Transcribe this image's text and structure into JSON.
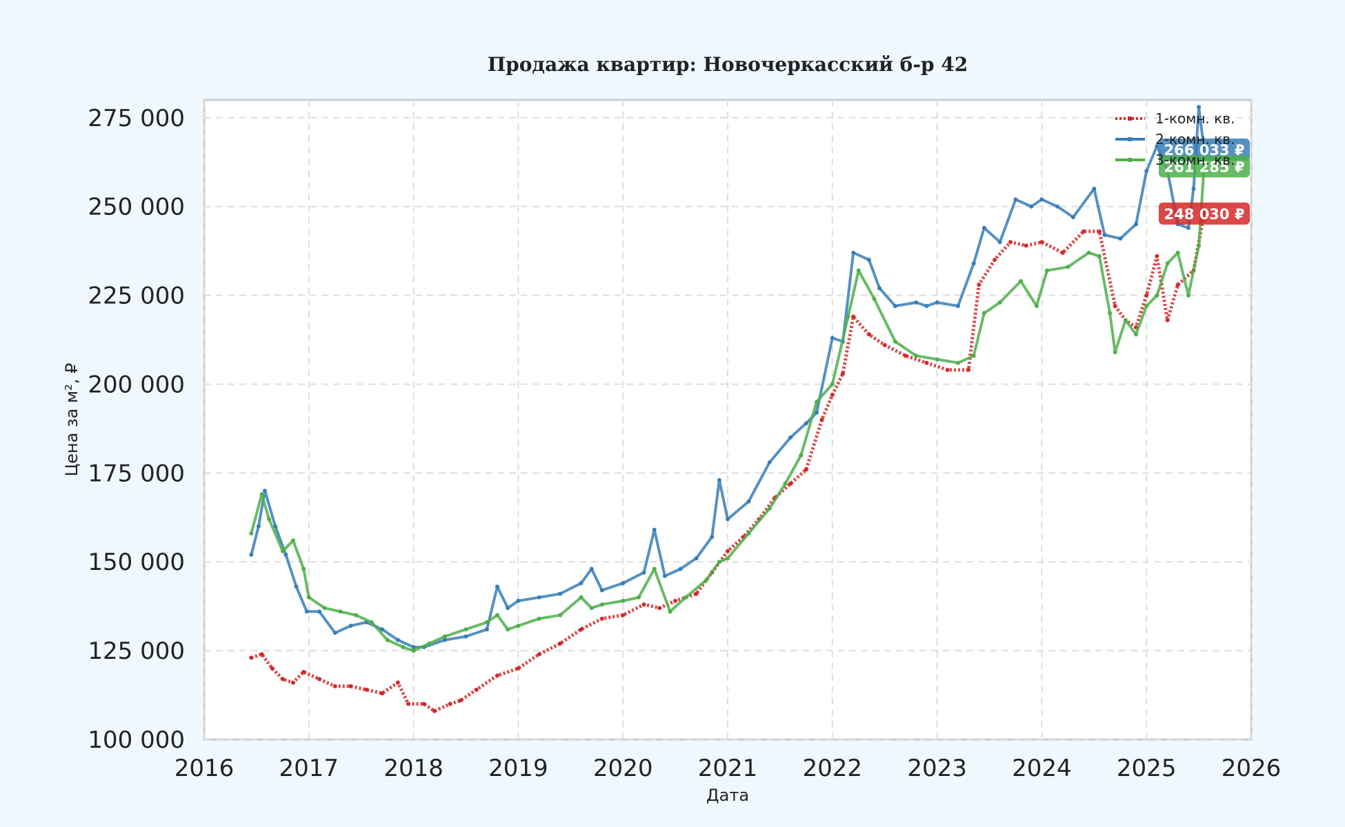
{
  "chart_data": {
    "type": "line",
    "title": "Продажа квартир: Новочеркасский б-р 42",
    "xlabel": "Дата",
    "ylabel": "Цена за м², ₽",
    "xlim": [
      2016.0,
      2026.0
    ],
    "ylim": [
      100000,
      280000
    ],
    "x_ticks": [
      2016,
      2017,
      2018,
      2019,
      2020,
      2021,
      2022,
      2023,
      2024,
      2025,
      2026
    ],
    "x_tick_labels": [
      "2016",
      "2017",
      "2018",
      "2019",
      "2020",
      "2021",
      "2022",
      "2023",
      "2024",
      "2025",
      "2026"
    ],
    "y_ticks": [
      100000,
      125000,
      150000,
      175000,
      200000,
      225000,
      250000,
      275000
    ],
    "y_tick_labels": [
      "100 000",
      "125 000",
      "150 000",
      "175 000",
      "200 000",
      "225 000",
      "250 000",
      "275 000"
    ],
    "grid": true,
    "legend_position": "top-right",
    "series": [
      {
        "name": "1-комн. кв.",
        "color": "#d62728",
        "style": "dotted",
        "end_label": "248 030 ₽",
        "x": [
          2016.45,
          2016.55,
          2016.65,
          2016.75,
          2016.85,
          2016.95,
          2017.1,
          2017.25,
          2017.4,
          2017.55,
          2017.7,
          2017.85,
          2017.95,
          2018.1,
          2018.2,
          2018.35,
          2018.45,
          2018.6,
          2018.8,
          2019.0,
          2019.2,
          2019.4,
          2019.6,
          2019.8,
          2020.0,
          2020.2,
          2020.35,
          2020.5,
          2020.7,
          2020.85,
          2021.0,
          2021.15,
          2021.3,
          2021.45,
          2021.6,
          2021.75,
          2021.9,
          2022.0,
          2022.1,
          2022.2,
          2022.35,
          2022.5,
          2022.7,
          2022.9,
          2023.1,
          2023.3,
          2023.4,
          2023.55,
          2023.7,
          2023.85,
          2024.0,
          2024.2,
          2024.4,
          2024.55,
          2024.7,
          2024.8,
          2024.9,
          2025.0,
          2025.1,
          2025.2,
          2025.3,
          2025.45,
          2025.55
        ],
        "y": [
          123000,
          124000,
          120000,
          117000,
          116000,
          119000,
          117000,
          115000,
          115000,
          114000,
          113000,
          116000,
          110000,
          110000,
          108000,
          110000,
          111000,
          114000,
          118000,
          120000,
          124000,
          127000,
          131000,
          134000,
          135000,
          138000,
          137000,
          139000,
          141000,
          147000,
          153000,
          157000,
          162000,
          168000,
          172000,
          176000,
          190000,
          197000,
          203000,
          219000,
          214000,
          211000,
          208000,
          206000,
          204000,
          204000,
          228000,
          235000,
          240000,
          239000,
          240000,
          237000,
          243000,
          243000,
          222000,
          218000,
          216000,
          225000,
          236000,
          218000,
          228000,
          232000,
          248030
        ]
      },
      {
        "name": "2-комн. кв.",
        "color": "#377eb8",
        "style": "solid",
        "end_label": "266 033 ₽",
        "x": [
          2016.45,
          2016.52,
          2016.58,
          2016.68,
          2016.78,
          2016.88,
          2016.98,
          2017.1,
          2017.25,
          2017.4,
          2017.55,
          2017.7,
          2017.85,
          2018.0,
          2018.1,
          2018.3,
          2018.5,
          2018.7,
          2018.8,
          2018.9,
          2019.0,
          2019.2,
          2019.4,
          2019.6,
          2019.7,
          2019.8,
          2020.0,
          2020.2,
          2020.3,
          2020.4,
          2020.55,
          2020.7,
          2020.85,
          2020.92,
          2021.0,
          2021.2,
          2021.4,
          2021.6,
          2021.75,
          2021.85,
          2022.0,
          2022.1,
          2022.2,
          2022.35,
          2022.45,
          2022.6,
          2022.8,
          2022.9,
          2023.0,
          2023.2,
          2023.35,
          2023.45,
          2023.6,
          2023.75,
          2023.9,
          2024.0,
          2024.15,
          2024.3,
          2024.5,
          2024.6,
          2024.75,
          2024.9,
          2025.0,
          2025.1,
          2025.2,
          2025.3,
          2025.4,
          2025.45,
          2025.5,
          2025.55
        ],
        "y": [
          152000,
          160000,
          170000,
          160000,
          152000,
          143000,
          136000,
          136000,
          130000,
          132000,
          133000,
          131000,
          128000,
          126000,
          126000,
          128000,
          129000,
          131000,
          143000,
          137000,
          139000,
          140000,
          141000,
          144000,
          148000,
          142000,
          144000,
          147000,
          159000,
          146000,
          148000,
          151000,
          157000,
          173000,
          162000,
          167000,
          178000,
          185000,
          189000,
          192000,
          213000,
          212000,
          237000,
          235000,
          227000,
          222000,
          223000,
          222000,
          223000,
          222000,
          234000,
          244000,
          240000,
          252000,
          250000,
          252000,
          250000,
          247000,
          255000,
          242000,
          241000,
          245000,
          260000,
          267000,
          260000,
          245000,
          244000,
          255000,
          278000,
          266033
        ]
      },
      {
        "name": "3-комн. кв.",
        "color": "#4daf4a",
        "style": "solid",
        "end_label": "261 285 ₽",
        "x": [
          2016.45,
          2016.55,
          2016.62,
          2016.75,
          2016.85,
          2016.95,
          2017.0,
          2017.15,
          2017.3,
          2017.45,
          2017.6,
          2017.75,
          2017.9,
          2018.0,
          2018.15,
          2018.3,
          2018.5,
          2018.7,
          2018.8,
          2018.9,
          2019.0,
          2019.2,
          2019.4,
          2019.6,
          2019.7,
          2019.8,
          2020.0,
          2020.15,
          2020.3,
          2020.45,
          2020.6,
          2020.8,
          2020.92,
          2021.0,
          2021.2,
          2021.4,
          2021.55,
          2021.7,
          2021.85,
          2022.0,
          2022.15,
          2022.25,
          2022.4,
          2022.6,
          2022.8,
          2023.0,
          2023.2,
          2023.35,
          2023.45,
          2023.6,
          2023.8,
          2023.95,
          2024.05,
          2024.25,
          2024.45,
          2024.55,
          2024.65,
          2024.7,
          2024.8,
          2024.9,
          2025.0,
          2025.1,
          2025.2,
          2025.3,
          2025.4,
          2025.5,
          2025.55
        ],
        "y": [
          158000,
          169000,
          162000,
          153000,
          156000,
          148000,
          140000,
          137000,
          136000,
          135000,
          133000,
          128000,
          126000,
          125000,
          127000,
          129000,
          131000,
          133000,
          135000,
          131000,
          132000,
          134000,
          135000,
          140000,
          137000,
          138000,
          139000,
          140000,
          148000,
          136000,
          140000,
          145000,
          150000,
          151000,
          158000,
          165000,
          172000,
          180000,
          195000,
          200000,
          219000,
          232000,
          224000,
          212000,
          208000,
          207000,
          206000,
          208000,
          220000,
          223000,
          229000,
          222000,
          232000,
          233000,
          237000,
          236000,
          220000,
          209000,
          218000,
          214000,
          222000,
          225000,
          234000,
          237000,
          225000,
          239000,
          261285
        ]
      }
    ]
  }
}
